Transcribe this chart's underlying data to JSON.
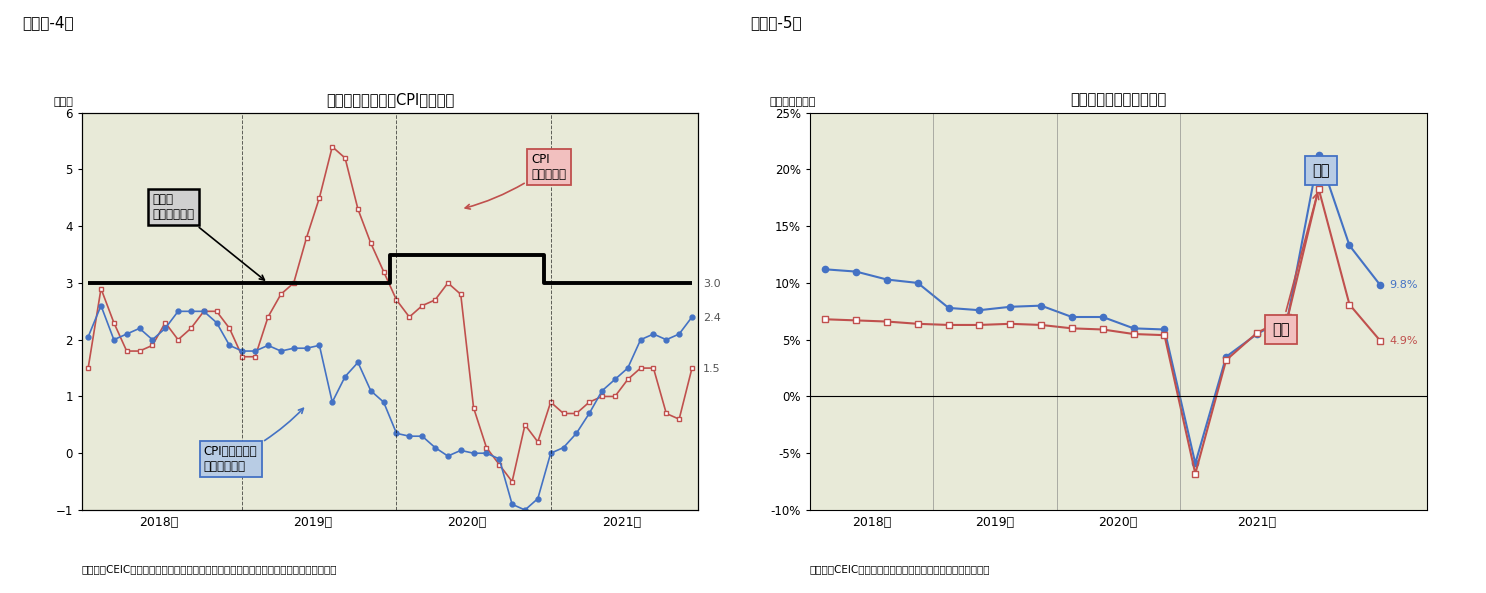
{
  "fig4_title": "消費者物価指数（CPI）の推移",
  "fig4_ylabel": "（％）",
  "fig4_source": "（資料）CEIC（出所は中国国家統計局）のデータ、及び中国政府の公表資料を元に作成",
  "fig4_header": "（図表-4）",
  "fig4_ylim": [
    -1,
    6
  ],
  "fig4_yticks": [
    -1,
    0,
    1,
    2,
    3,
    4,
    5,
    6
  ],
  "fig4_bg": "#e8ead8",
  "cpi_yall": [
    1.5,
    2.9,
    2.3,
    1.8,
    1.8,
    1.9,
    2.3,
    2.0,
    2.2,
    2.5,
    2.5,
    2.2,
    1.7,
    1.7,
    2.4,
    2.8,
    3.0,
    3.8,
    4.5,
    5.4,
    5.2,
    4.3,
    3.7,
    3.2,
    2.7,
    2.4,
    2.6,
    2.7,
    3.0,
    2.8,
    0.8,
    0.1,
    -0.2,
    -0.5,
    0.5,
    0.2,
    0.9,
    0.7,
    0.7,
    0.9,
    1.0,
    1.0,
    1.3,
    1.5,
    1.5,
    0.7,
    0.6,
    1.5
  ],
  "cpi_yex": [
    2.05,
    2.6,
    2.0,
    2.1,
    2.2,
    2.0,
    2.2,
    2.5,
    2.5,
    2.5,
    2.3,
    1.9,
    1.8,
    1.8,
    1.9,
    1.8,
    1.85,
    1.85,
    1.9,
    0.9,
    1.35,
    1.6,
    1.1,
    0.9,
    0.35,
    0.3,
    0.3,
    0.1,
    -0.05,
    0.05,
    0.0,
    0.0,
    -0.1,
    -0.9,
    -1.0,
    -0.8,
    0.0,
    0.1,
    0.35,
    0.7,
    1.1,
    1.3,
    1.5,
    2.0,
    2.1,
    2.0,
    2.1,
    2.4
  ],
  "cpi_color": "#c0504d",
  "cpi_ex_color": "#4472c4",
  "target_line_color": "#000000",
  "cpi_label": "CPI\n（前年比）",
  "cpi_ex_label": "CPI（前年比）\n（除く食品）",
  "gov_label": "政府の\n物価抑制目標",
  "fig4_xlabels": [
    "2018年",
    "2019年",
    "2020年",
    "2021年"
  ],
  "fig5_title": "名目成長率と実質成長率",
  "fig5_ylabel": "（前年同期比）",
  "fig5_source": "（資料）CEIC（出所は中国国家統計局）のデータを元に作成",
  "fig5_header": "（図表-5）",
  "fig5_ylim": [
    -10,
    25
  ],
  "fig5_yticks": [
    -10,
    -5,
    0,
    5,
    10,
    15,
    20,
    25
  ],
  "fig5_yticklabels": [
    "-10%",
    "-5%",
    "0%",
    "5%",
    "10%",
    "15%",
    "20%",
    "25%"
  ],
  "fig5_bg": "#e8ead8",
  "nominal_y": [
    11.2,
    11.0,
    10.3,
    10.0,
    7.8,
    7.6,
    7.9,
    8.0,
    7.0,
    7.0,
    6.0,
    5.9,
    -5.9,
    3.5,
    5.5,
    7.0,
    21.3,
    13.3,
    9.8
  ],
  "real_y": [
    6.8,
    6.7,
    6.6,
    6.4,
    6.3,
    6.3,
    6.4,
    6.3,
    6.0,
    5.9,
    5.5,
    5.4,
    -6.8,
    3.2,
    5.6,
    7.0,
    18.3,
    8.1,
    4.9
  ],
  "nominal_color": "#4472c4",
  "real_color": "#c0504d",
  "fig5_xlabels": [
    "2018年",
    "2019年",
    "2020年",
    "2021年"
  ],
  "nom_label": "名目",
  "real_label": "実質"
}
